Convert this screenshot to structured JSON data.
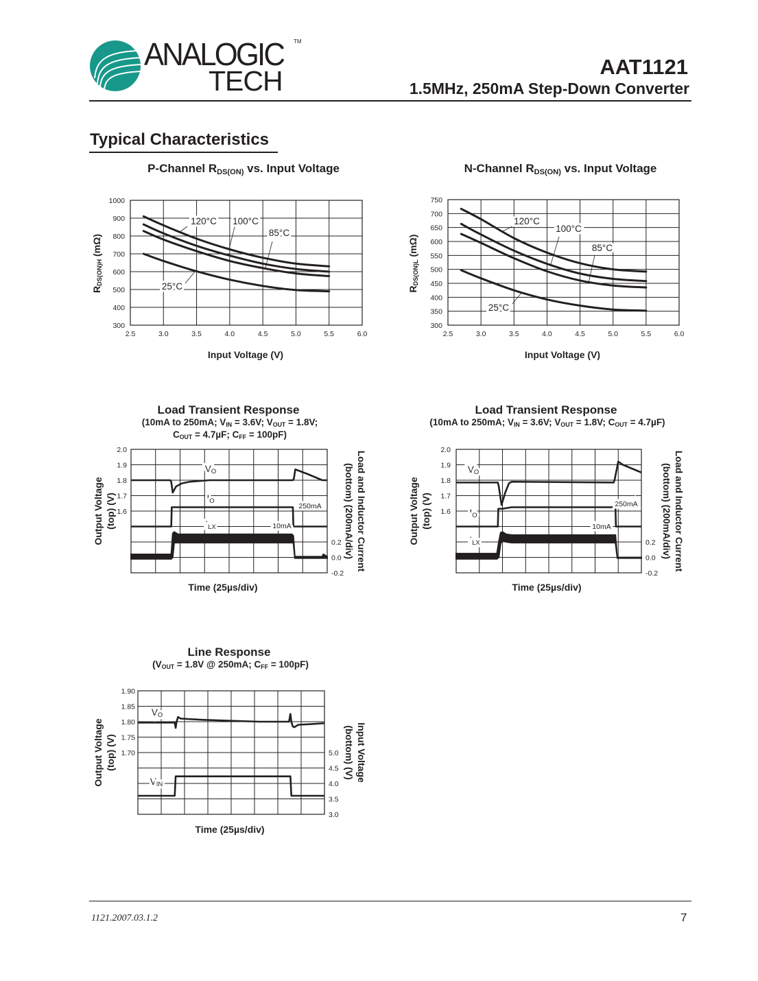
{
  "header": {
    "logo_text": [
      "ANALOGIC",
      "TECH",
      "TM"
    ],
    "logo_color": "#17988a",
    "part_number": "AAT1121",
    "part_description": "1.5MHz, 250mA Step-Down Converter"
  },
  "section_title": "Typical Characteristics",
  "footer": {
    "doc_number": "1121.2007.03.1.2",
    "page_number": "7"
  },
  "chart_data": [
    {
      "type": "line",
      "title": [
        [
          "P-Channel R",
          false
        ],
        [
          "DS(ON)",
          true
        ],
        [
          " vs. Input Voltage",
          false
        ]
      ],
      "xlabel": "Input Voltage (V)",
      "ylabel": [
        [
          "R",
          false
        ],
        [
          "DS(ON)H",
          true
        ],
        [
          " (mΩ)",
          false
        ]
      ],
      "xlim": [
        2.5,
        6.0
      ],
      "ylim": [
        300,
        1000
      ],
      "grid": true,
      "xticks": [
        "2.5",
        "3.0",
        "3.5",
        "4.0",
        "4.5",
        "5.0",
        "5.5",
        "6.0"
      ],
      "yticks": [
        "300",
        "400",
        "500",
        "600",
        "700",
        "800",
        "900",
        "1000"
      ],
      "series": [
        {
          "name": "120°C",
          "x": [
            2.7,
            3.0,
            3.5,
            4.0,
            4.5,
            5.0,
            5.5
          ],
          "y": [
            910,
            860,
            785,
            725,
            678,
            645,
            630
          ]
        },
        {
          "name": "100°C",
          "x": [
            2.7,
            3.0,
            3.5,
            4.0,
            4.5,
            5.0,
            5.5
          ],
          "y": [
            865,
            815,
            745,
            690,
            645,
            615,
            600
          ]
        },
        {
          "name": "85°C",
          "x": [
            2.7,
            3.0,
            3.5,
            4.0,
            4.5,
            5.0,
            5.5
          ],
          "y": [
            828,
            780,
            715,
            660,
            620,
            590,
            575
          ]
        },
        {
          "name": "25°C",
          "x": [
            2.7,
            3.0,
            3.5,
            4.0,
            4.5,
            5.0,
            5.5
          ],
          "y": [
            700,
            660,
            602,
            555,
            520,
            497,
            490
          ]
        }
      ]
    },
    {
      "type": "line",
      "title": [
        [
          "N-Channel R",
          false
        ],
        [
          "DS(ON)",
          true
        ],
        [
          " vs. Input Voltage",
          false
        ]
      ],
      "xlabel": "Input Voltage (V)",
      "ylabel": [
        [
          "R",
          false
        ],
        [
          "DS(ON)L",
          true
        ],
        [
          " (mΩ)",
          false
        ]
      ],
      "xlim": [
        2.5,
        6.0
      ],
      "ylim": [
        300,
        750
      ],
      "grid": true,
      "xticks": [
        "2.5",
        "3.0",
        "3.5",
        "4.0",
        "4.5",
        "5.0",
        "5.5",
        "6.0"
      ],
      "yticks": [
        "300",
        "350",
        "400",
        "450",
        "500",
        "550",
        "600",
        "650",
        "700",
        "750"
      ],
      "series": [
        {
          "name": "120°C",
          "x": [
            2.7,
            3.0,
            3.5,
            4.0,
            4.5,
            5.0,
            5.5
          ],
          "y": [
            717,
            680,
            612,
            560,
            522,
            500,
            492
          ]
        },
        {
          "name": "100°C",
          "x": [
            2.7,
            3.0,
            3.5,
            4.0,
            4.5,
            5.0,
            5.5
          ],
          "y": [
            663,
            625,
            567,
            520,
            485,
            466,
            458
          ]
        },
        {
          "name": "85°C",
          "x": [
            2.7,
            3.0,
            3.5,
            4.0,
            4.5,
            5.0,
            5.5
          ],
          "y": [
            627,
            595,
            540,
            493,
            460,
            442,
            435
          ]
        },
        {
          "name": "25°C",
          "x": [
            2.7,
            3.0,
            3.5,
            4.0,
            4.5,
            5.0,
            5.5
          ],
          "y": [
            497,
            468,
            425,
            392,
            370,
            356,
            352
          ]
        }
      ]
    },
    {
      "type": "line",
      "title": "Load Transient Response",
      "subtitle": [
        [
          [
            "(10mA to 250mA; V",
            false
          ],
          [
            "IN",
            true
          ],
          [
            " = 3.6V; V",
            false
          ],
          [
            "OUT",
            true
          ],
          [
            " = 1.8V;",
            false
          ]
        ],
        [
          [
            "C",
            false
          ],
          [
            "OUT",
            true
          ],
          [
            " = 4.7µF; C",
            false
          ],
          [
            "FF",
            true
          ],
          [
            " = 100pF)",
            false
          ]
        ]
      ],
      "xlabel": "Time (25µs/div)",
      "ylabel_left": [
        "Output Voltage",
        "(top) (V)"
      ],
      "ylabel_right": [
        "Load and Inductor Current",
        "(bottom) (200mA/div)"
      ],
      "xlim": [
        0,
        200
      ],
      "ylim_left": [
        1.2,
        2.0
      ],
      "ylim_right": [
        -0.2,
        1.4
      ],
      "grid": true,
      "yticks_left": [
        "2.0",
        "1.9",
        "1.8",
        "1.7",
        "1.6"
      ],
      "yticks_right": [
        "0.2",
        "0.0",
        "-0.2"
      ],
      "annotations": [
        "250mA",
        "10mA"
      ],
      "series": [
        {
          "label": [
            [
              "V",
              false
            ],
            [
              "O",
              true
            ]
          ],
          "axis": "left",
          "x": [
            0,
            40,
            41,
            42.5,
            46,
            52,
            60,
            80,
            165,
            166,
            167.5,
            180,
            195,
            200
          ],
          "y": [
            1.8,
            1.8,
            1.79,
            1.72,
            1.76,
            1.78,
            1.79,
            1.8,
            1.8,
            1.81,
            1.87,
            1.84,
            1.8,
            1.8
          ]
        },
        {
          "label": [
            [
              "I",
              false
            ],
            [
              "O",
              true
            ]
          ],
          "axis": "right",
          "x": [
            0,
            41,
            41.5,
            165,
            165.5,
            200
          ],
          "y": [
            0.4,
            0.4,
            0.65,
            0.65,
            0.4,
            0.4
          ]
        },
        {
          "label": [
            [
              "I",
              false
            ],
            [
              "LX",
              true
            ]
          ],
          "axis": "right",
          "x": [
            0,
            41,
            42.5,
            44,
            48,
            164,
            165.5,
            167,
            195,
            196,
            200
          ],
          "ymax": [
            0.04,
            0.04,
            0.31,
            0.33,
            0.3,
            0.3,
            0.28,
            0.01,
            0.01,
            0.04,
            0.01
          ],
          "ymin": [
            -0.02,
            -0.02,
            0.0,
            0.19,
            0.19,
            0.19,
            0.19,
            -0.01,
            -0.01,
            -0.01,
            -0.01
          ]
        }
      ]
    },
    {
      "type": "line",
      "title": "Load Transient Response",
      "subtitle": [
        [
          [
            "(10mA to 250mA; V",
            false
          ],
          [
            "IN",
            true
          ],
          [
            " = 3.6V; V",
            false
          ],
          [
            "OUT",
            true
          ],
          [
            " = 1.8V; C",
            false
          ],
          [
            "OUT",
            true
          ],
          [
            " = 4.7µF)",
            false
          ]
        ]
      ],
      "xlabel": "Time (25µs/div)",
      "ylabel_left": [
        "Output Voltage",
        "(top) (V)"
      ],
      "ylabel_right": [
        "Load and Inductor Current",
        "(bottom) (200mA/div)"
      ],
      "xlim": [
        0,
        200
      ],
      "ylim_left": [
        1.2,
        2.0
      ],
      "ylim_right": [
        -0.2,
        1.4
      ],
      "grid": true,
      "yticks_left": [
        "2.0",
        "1.9",
        "1.8",
        "1.7",
        "1.6"
      ],
      "yticks_right": [
        "0.2",
        "0.0",
        "-0.2"
      ],
      "annotations": [
        "250mA",
        "10mA"
      ],
      "series": [
        {
          "label": [
            [
              "V",
              false
            ],
            [
              "O",
              true
            ]
          ],
          "axis": "left",
          "x": [
            0,
            45,
            46,
            49,
            53,
            57,
            60,
            170,
            171,
            175,
            180,
            200
          ],
          "y": [
            1.785,
            1.785,
            1.76,
            1.64,
            1.72,
            1.78,
            1.79,
            1.785,
            1.8,
            1.92,
            1.9,
            1.85
          ]
        },
        {
          "label": [
            [
              "I",
              false
            ],
            [
              "O",
              true
            ]
          ],
          "axis": "right",
          "x": [
            0,
            45,
            45.5,
            50,
            60,
            172,
            172.5,
            200
          ],
          "y": [
            0.4,
            0.4,
            0.63,
            0.63,
            0.65,
            0.65,
            0.4,
            0.4
          ]
        },
        {
          "label": [
            [
              "I",
              false
            ],
            [
              "LX",
              true
            ]
          ],
          "axis": "right",
          "x": [
            0,
            44,
            46,
            48,
            50,
            54,
            60,
            171,
            172,
            174,
            200
          ],
          "ymax": [
            0.05,
            0.05,
            0.2,
            0.32,
            0.33,
            0.3,
            0.29,
            0.29,
            0.29,
            0.0,
            0.0
          ],
          "ymin": [
            -0.02,
            -0.02,
            0.0,
            0.18,
            0.22,
            0.2,
            0.19,
            0.19,
            0.19,
            -0.01,
            -0.01
          ]
        }
      ]
    },
    {
      "type": "line",
      "title": "Line Response",
      "subtitle": [
        [
          [
            "(V",
            false
          ],
          [
            "OUT",
            true
          ],
          [
            " = 1.8V @ 250mA; C",
            false
          ],
          [
            "FF",
            true
          ],
          [
            " = 100pF)",
            false
          ]
        ]
      ],
      "xlabel": "Time (25µs/div)",
      "ylabel_left": [
        "Output Voltage",
        "(top) (V)"
      ],
      "ylabel_right": [
        "Input Voltage",
        "(bottom) (V)"
      ],
      "xlim": [
        0,
        200
      ],
      "ylim_left": [
        1.5,
        1.9
      ],
      "ylim_right": [
        3.0,
        7.0
      ],
      "grid": true,
      "yticks_left": [
        "1.90",
        "1.85",
        "1.80",
        "1.75",
        "1.70"
      ],
      "yticks_right": [
        "5.0",
        "4.5",
        "4.0",
        "3.5",
        "3.0"
      ],
      "series": [
        {
          "label": [
            [
              "V",
              false
            ],
            [
              "O",
              true
            ]
          ],
          "axis": "left",
          "x": [
            0,
            39.5,
            40.5,
            41.5,
            43,
            46,
            70,
            130,
            162,
            163.5,
            164.5,
            166,
            167.5,
            172,
            185,
            200
          ],
          "y": [
            1.797,
            1.797,
            1.78,
            1.8,
            1.815,
            1.81,
            1.806,
            1.8,
            1.8,
            1.825,
            1.8,
            1.785,
            1.782,
            1.79,
            1.792,
            1.795
          ]
        },
        {
          "label": [
            [
              "V",
              false
            ],
            [
              "IN",
              true
            ]
          ],
          "axis": "right",
          "x": [
            0,
            39.5,
            40.5,
            163.5,
            164.5,
            200
          ],
          "y": [
            3.6,
            3.6,
            4.23,
            4.23,
            3.6,
            3.6
          ]
        }
      ]
    }
  ]
}
